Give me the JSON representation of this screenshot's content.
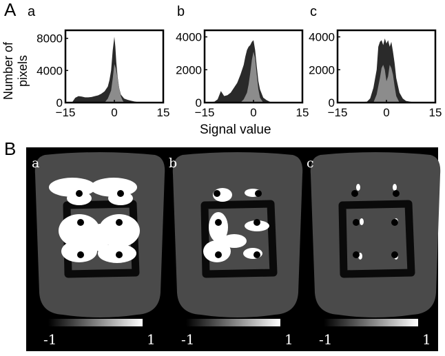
{
  "figure": {
    "panel_a_letter": "A",
    "panel_b_letter": "B"
  },
  "chart_data": [
    {
      "type": "area",
      "label": "a",
      "xlabel": "Signal value",
      "ylabel": "Number of pixels",
      "xlim": [
        -15,
        15
      ],
      "ylim": [
        0,
        9000
      ],
      "xticks": [
        "−15",
        "0",
        "15"
      ],
      "yticks": [
        "0",
        "4000",
        "8000"
      ],
      "series": [
        {
          "color": "#2a2a2a",
          "x": [
            -15,
            -13,
            -12,
            -11,
            -10,
            -9,
            -8,
            -7,
            -6,
            -5,
            -4,
            -3,
            -2,
            -1.5,
            -1,
            -0.5,
            0,
            0.3,
            0.6,
            1,
            1.5,
            2,
            3,
            4,
            5,
            6,
            7,
            8
          ],
          "values": [
            0,
            0,
            600,
            800,
            750,
            650,
            650,
            700,
            800,
            900,
            1100,
            1400,
            2000,
            2800,
            4000,
            6500,
            8200,
            7000,
            5000,
            3200,
            1800,
            1000,
            500,
            350,
            250,
            150,
            80,
            0
          ]
        },
        {
          "color": "#8c8c8c",
          "x": [
            -3,
            -2,
            -1,
            -0.5,
            0,
            0.5,
            1,
            1.5,
            2,
            2.5,
            3
          ],
          "values": [
            0,
            500,
            1500,
            3000,
            4800,
            4200,
            3000,
            1800,
            800,
            300,
            0
          ]
        }
      ]
    },
    {
      "type": "area",
      "label": "b",
      "xlim": [
        -15,
        15
      ],
      "ylim": [
        0,
        4400
      ],
      "xticks": [
        "−15",
        "0",
        "15"
      ],
      "yticks": [
        "0",
        "2000",
        "4000"
      ],
      "series": [
        {
          "color": "#2a2a2a",
          "x": [
            -15,
            -12,
            -11,
            -10,
            -9,
            -8,
            -7,
            -6,
            -5,
            -4,
            -3,
            -2.5,
            -2,
            -1.5,
            -1,
            -0.5,
            0,
            0.5,
            1,
            1.5,
            2,
            3,
            4,
            5,
            6
          ],
          "values": [
            0,
            50,
            200,
            700,
            400,
            450,
            600,
            900,
            1200,
            1700,
            2300,
            2800,
            3200,
            3400,
            3500,
            3700,
            3800,
            3200,
            2200,
            1300,
            800,
            300,
            150,
            50,
            0
          ]
        },
        {
          "color": "#8c8c8c",
          "x": [
            -4,
            -3,
            -2,
            -1.5,
            -1,
            -0.5,
            0,
            0.5,
            1,
            1.5,
            2,
            3
          ],
          "values": [
            0,
            200,
            600,
            1100,
            1800,
            2600,
            3100,
            2700,
            1700,
            800,
            300,
            0
          ]
        }
      ]
    },
    {
      "type": "area",
      "label": "c",
      "xlim": [
        -15,
        15
      ],
      "ylim": [
        0,
        4400
      ],
      "xticks": [
        "−15",
        "0",
        "15"
      ],
      "yticks": [
        "0",
        "2000",
        "4000"
      ],
      "series": [
        {
          "color": "#2a2a2a",
          "x": [
            -10,
            -6,
            -5,
            -4,
            -3,
            -2.5,
            -2,
            -1.5,
            -1,
            -0.5,
            0,
            0.5,
            1,
            1.5,
            2,
            2.5,
            3,
            4,
            5,
            6,
            8,
            10
          ],
          "values": [
            0,
            50,
            250,
            900,
            2000,
            3400,
            3700,
            3800,
            3500,
            3900,
            3600,
            3800,
            3400,
            3700,
            3100,
            2400,
            1500,
            600,
            250,
            100,
            30,
            0
          ]
        },
        {
          "color": "#8c8c8c",
          "x": [
            -4,
            -3,
            -2,
            -1.5,
            -1,
            -0.5,
            0,
            0.5,
            1,
            1.5,
            2,
            2.5,
            3,
            4
          ],
          "values": [
            0,
            500,
            1500,
            2100,
            2300,
            2000,
            1300,
            1600,
            2300,
            2100,
            1700,
            1000,
            400,
            0
          ]
        }
      ]
    }
  ],
  "panel_b": {
    "subpanels": [
      {
        "label": "a",
        "colorbar_min": "-1",
        "colorbar_max": "1"
      },
      {
        "label": "b",
        "colorbar_min": "-1",
        "colorbar_max": "1"
      },
      {
        "label": "c",
        "colorbar_min": "-1",
        "colorbar_max": "1"
      }
    ],
    "colors": {
      "background": "#000000",
      "phantom": "#4a4a4a",
      "ring": "#0a0a0a",
      "highlight": "#ffffff"
    }
  }
}
